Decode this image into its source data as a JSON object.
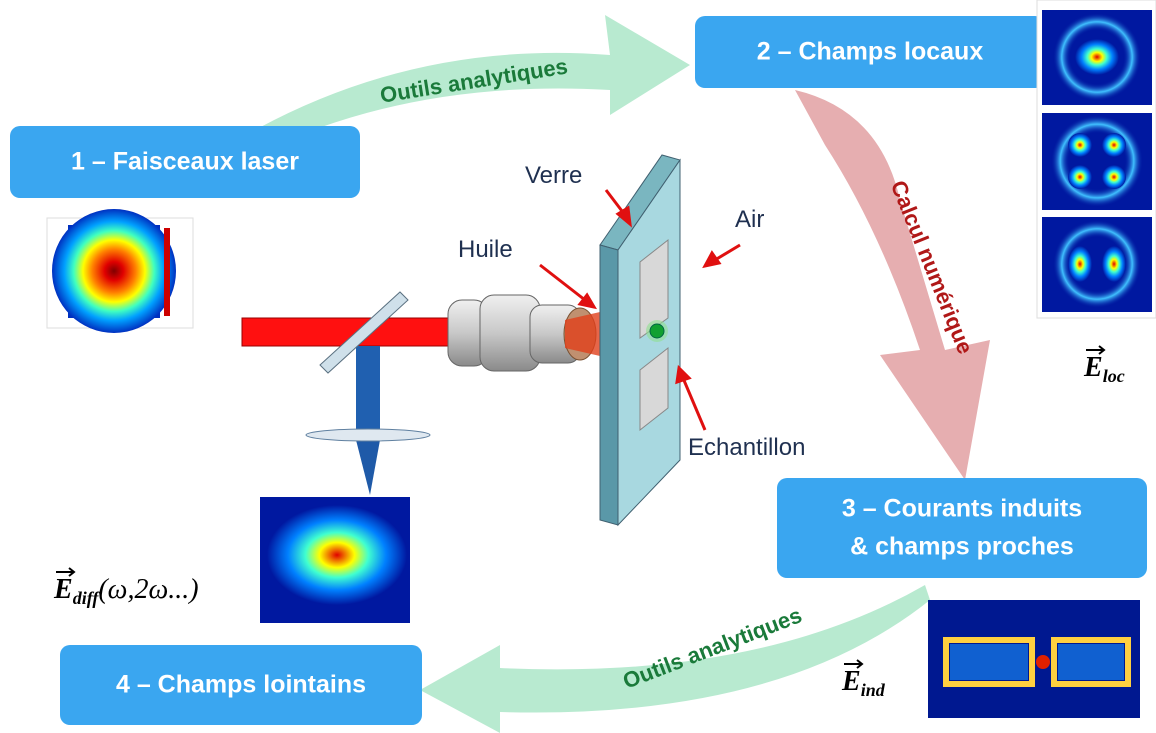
{
  "steps": [
    {
      "lines": [
        "1 – Faisceaux laser"
      ]
    },
    {
      "lines": [
        "2 – Champs locaux"
      ]
    },
    {
      "lines": [
        "3 – Courants induits",
        "& champs proches"
      ]
    },
    {
      "lines": [
        "4 – Champs lointains"
      ]
    }
  ],
  "arrows": [
    {
      "label": "Outils analytiques"
    },
    {
      "label": "Calcul numérique"
    },
    {
      "label": "Outils analytiques"
    }
  ],
  "setup_labels": [
    "Verre",
    "Huile",
    "Air",
    "Echantillon"
  ],
  "fields": [
    {
      "symbol": "E",
      "subscript": "loc"
    },
    {
      "symbol": "E",
      "subscript": "diff",
      "argument": "(ω,2ω...)"
    },
    {
      "symbol": "E",
      "subscript": "ind"
    }
  ]
}
